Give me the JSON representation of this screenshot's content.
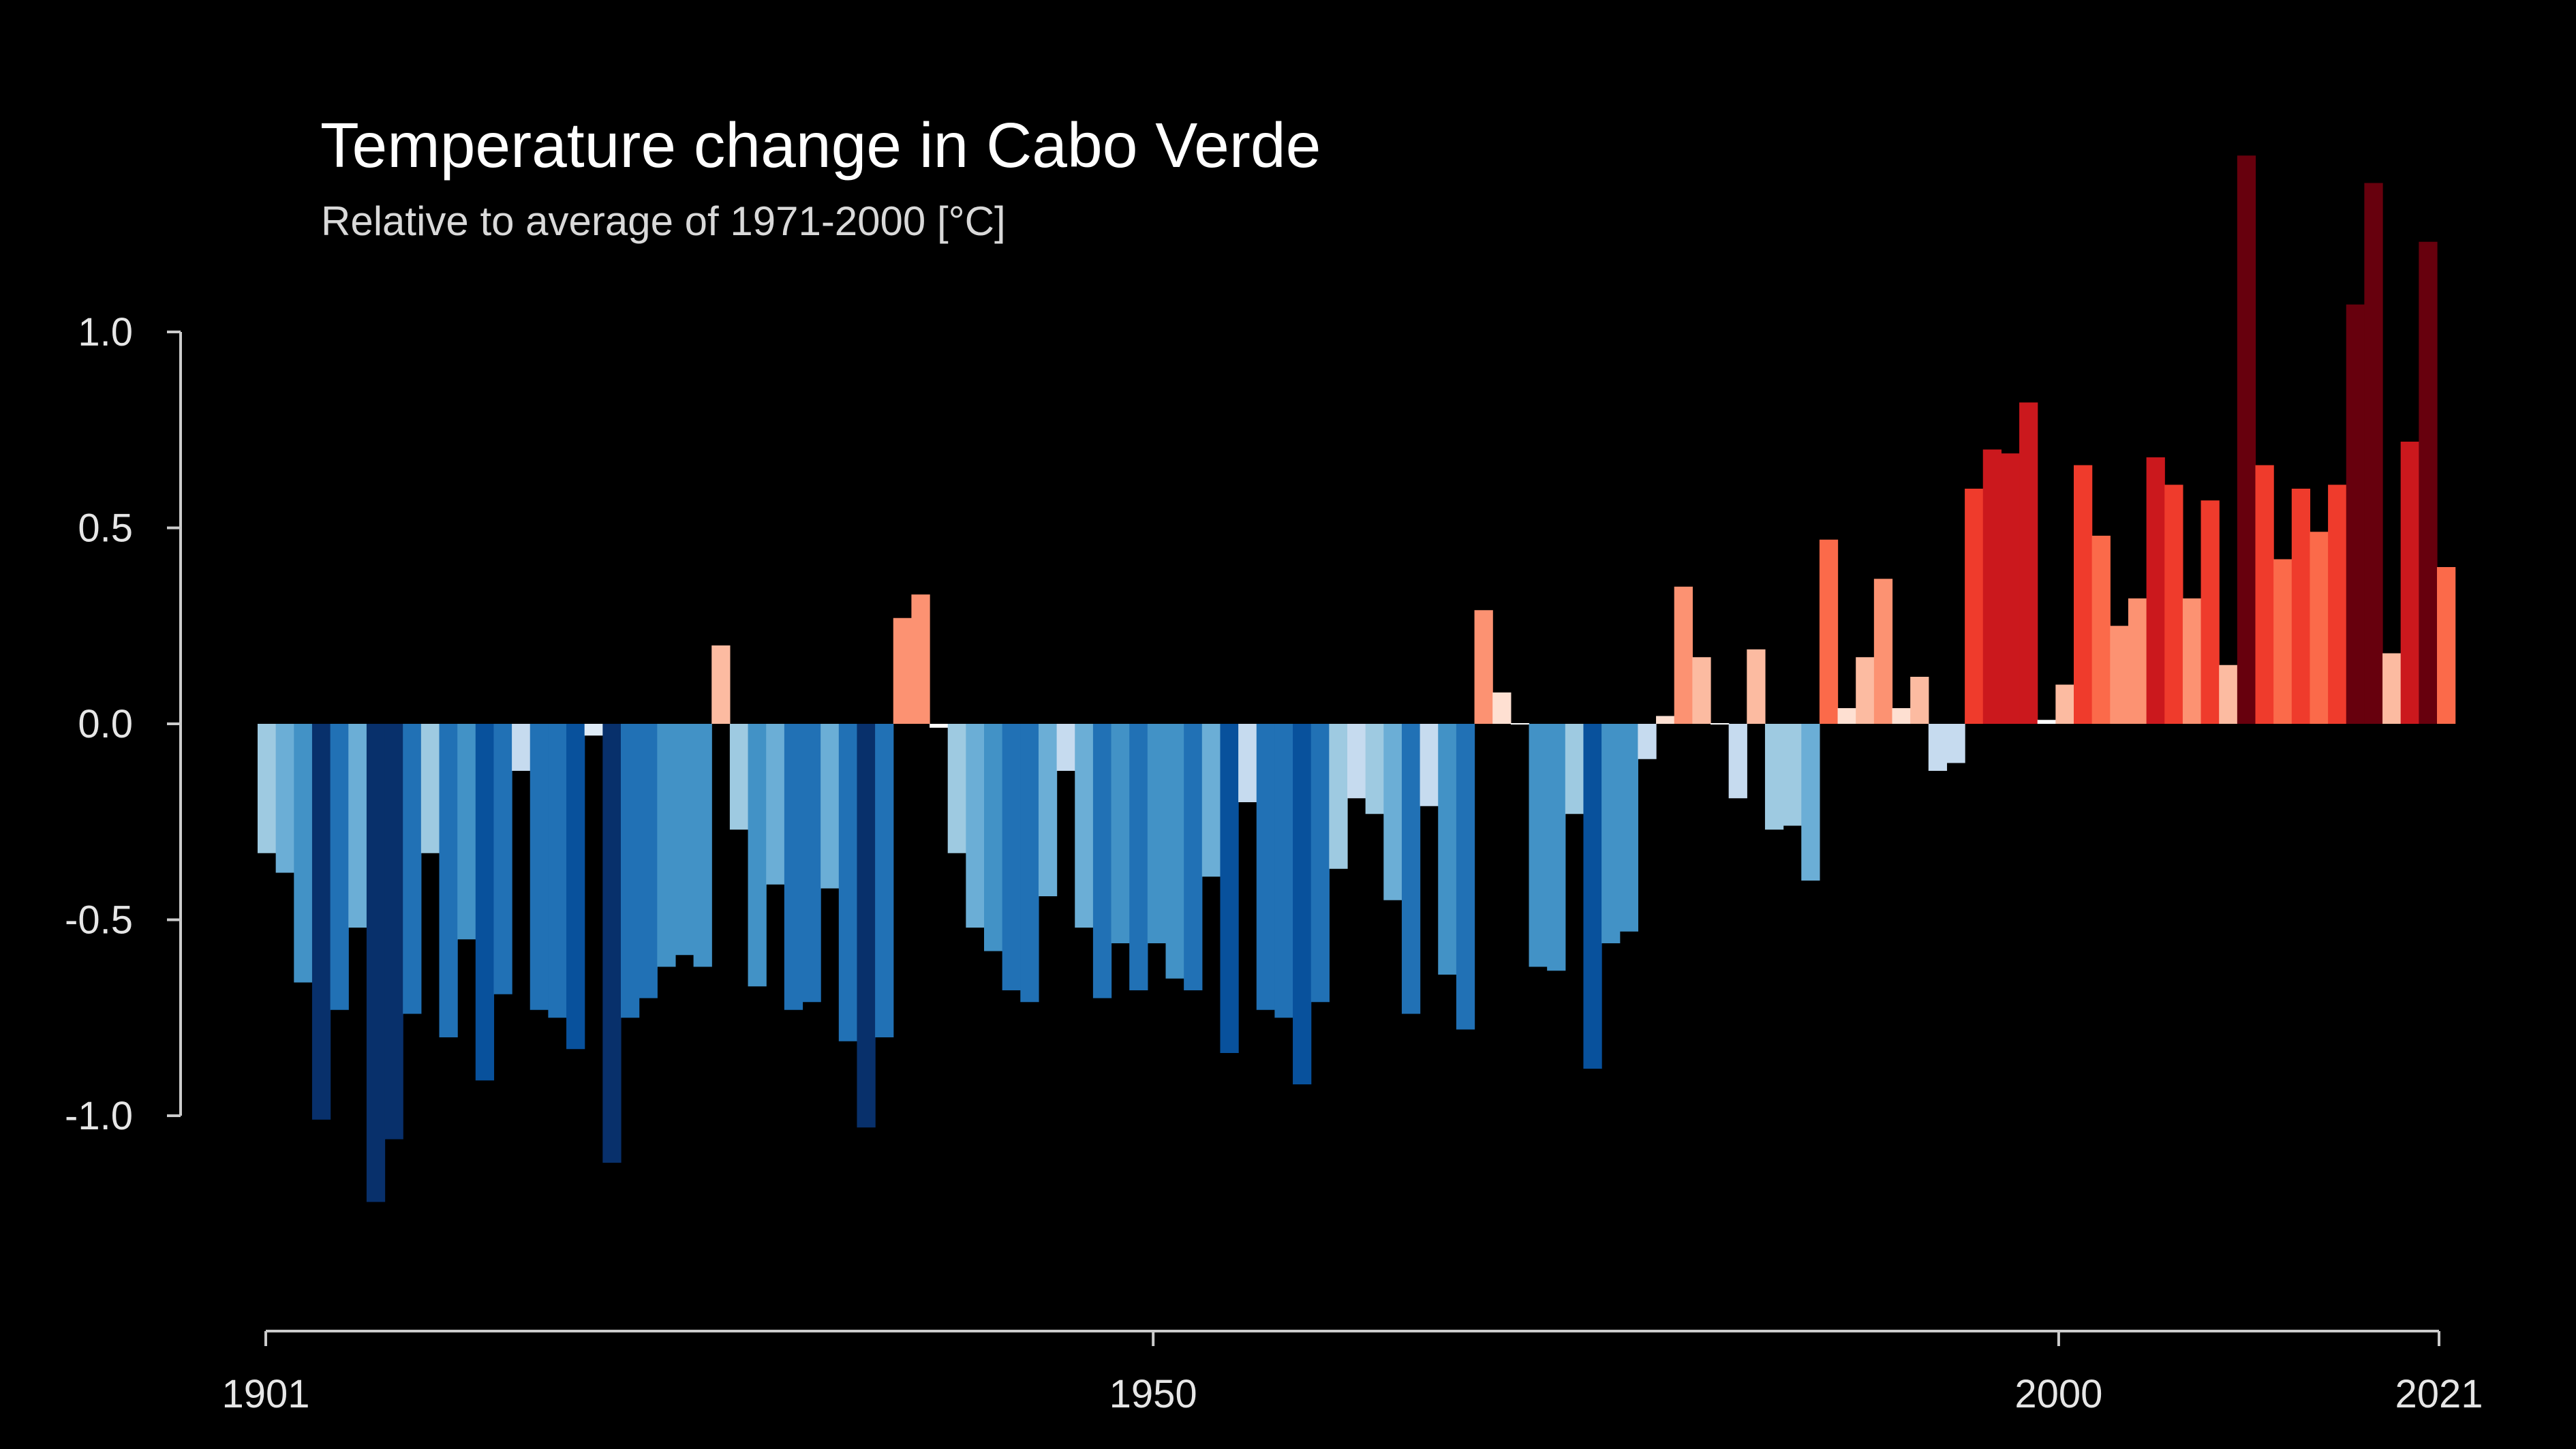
{
  "chart_data": {
    "type": "bar",
    "title": "Temperature change in Cabo Verde",
    "subtitle": "Relative to average of 1971-2000  [°C]",
    "x_start": 1901,
    "x_end": 2021,
    "ylim": [
      -1.45,
      1.45
    ],
    "y_ticks": [
      {
        "value": 1.0,
        "label": "1.0"
      },
      {
        "value": 0.5,
        "label": "0.5"
      },
      {
        "value": 0.0,
        "label": "0.0"
      },
      {
        "value": -0.5,
        "label": "-0.5"
      },
      {
        "value": -1.0,
        "label": "-1.0"
      }
    ],
    "x_ticks": [
      {
        "value": 1901,
        "label": "1901"
      },
      {
        "value": 1950,
        "label": "1950"
      },
      {
        "value": 2000,
        "label": "2000"
      },
      {
        "value": 2021,
        "label": "2021"
      }
    ],
    "grid": false,
    "legend": "none",
    "colormap": "red-blue diverging (blue = cooler, red = warmer)",
    "years": [
      1901,
      1902,
      1903,
      1904,
      1905,
      1906,
      1907,
      1908,
      1909,
      1910,
      1911,
      1912,
      1913,
      1914,
      1915,
      1916,
      1917,
      1918,
      1919,
      1920,
      1921,
      1922,
      1923,
      1924,
      1925,
      1926,
      1927,
      1928,
      1929,
      1930,
      1931,
      1932,
      1933,
      1934,
      1935,
      1936,
      1937,
      1938,
      1939,
      1940,
      1941,
      1942,
      1943,
      1944,
      1945,
      1946,
      1947,
      1948,
      1949,
      1950,
      1951,
      1952,
      1953,
      1954,
      1955,
      1956,
      1957,
      1958,
      1959,
      1960,
      1961,
      1962,
      1963,
      1964,
      1965,
      1966,
      1967,
      1968,
      1969,
      1970,
      1971,
      1972,
      1973,
      1974,
      1975,
      1976,
      1977,
      1978,
      1979,
      1980,
      1981,
      1982,
      1983,
      1984,
      1985,
      1986,
      1987,
      1988,
      1989,
      1990,
      1991,
      1992,
      1993,
      1994,
      1995,
      1996,
      1997,
      1998,
      1999,
      2000,
      2001,
      2002,
      2003,
      2004,
      2005,
      2006,
      2007,
      2008,
      2009,
      2010,
      2011,
      2012,
      2013,
      2014,
      2015,
      2016,
      2017,
      2018,
      2019,
      2020,
      2021
    ],
    "values": [
      -0.33,
      -0.38,
      -0.66,
      -1.01,
      -0.73,
      -0.52,
      -1.22,
      -1.06,
      -0.74,
      -0.33,
      -0.8,
      -0.55,
      -0.91,
      -0.69,
      -0.12,
      -0.73,
      -0.75,
      -0.83,
      -0.03,
      -1.12,
      -0.75,
      -0.7,
      -0.62,
      -0.59,
      -0.62,
      0.2,
      -0.27,
      -0.67,
      -0.41,
      -0.73,
      -0.71,
      -0.42,
      -0.81,
      -1.03,
      -0.8,
      0.27,
      0.33,
      -0.01,
      -0.33,
      -0.52,
      -0.58,
      -0.68,
      -0.71,
      -0.44,
      -0.12,
      -0.52,
      -0.7,
      -0.56,
      -0.68,
      -0.56,
      -0.65,
      -0.68,
      -0.39,
      -0.84,
      -0.2,
      -0.73,
      -0.75,
      -0.92,
      -0.71,
      -0.37,
      -0.19,
      -0.23,
      -0.45,
      -0.74,
      -0.21,
      -0.64,
      -0.78,
      0.29,
      0.08,
      0.0,
      -0.62,
      -0.63,
      -0.23,
      -0.88,
      -0.56,
      -0.53,
      -0.09,
      0.02,
      0.35,
      0.17,
      0.0,
      -0.19,
      0.19,
      -0.27,
      -0.26,
      -0.4,
      0.47,
      0.04,
      0.17,
      0.37,
      0.04,
      0.12,
      -0.12,
      -0.1,
      0.6,
      0.7,
      0.69,
      0.82,
      0.01,
      0.1,
      0.66,
      0.48,
      0.25,
      0.32,
      0.68,
      0.61,
      0.32,
      0.57,
      0.15,
      1.45,
      0.66,
      0.42,
      0.6,
      0.49,
      0.61,
      1.07,
      1.38,
      0.18,
      0.72,
      1.23,
      0.4
    ]
  }
}
